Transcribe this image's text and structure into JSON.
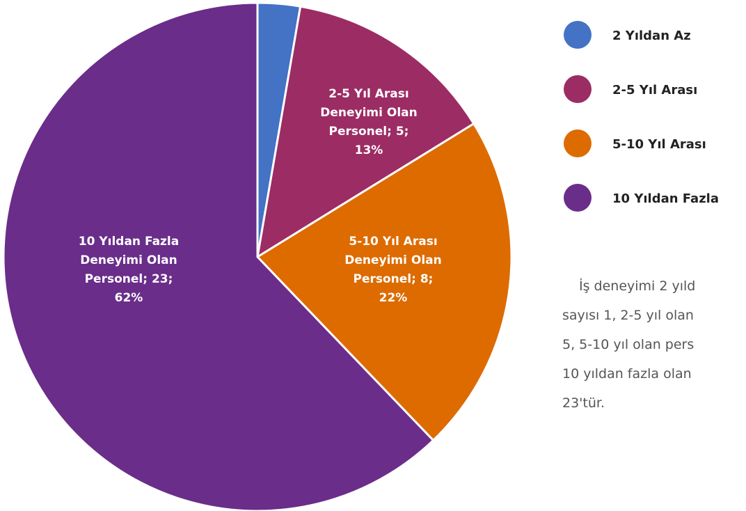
{
  "chart_data": {
    "type": "pie",
    "categories": [
      "2 Yıldan Az",
      "2-5 Yıl Arası",
      "5-10 Yıl Arası",
      "10 Yıldan Fazla"
    ],
    "values": [
      1,
      5,
      8,
      23
    ],
    "value_labels": [
      null,
      [
        "2-5 Yıl Arası",
        "Deneyimi Olan",
        "Personel; 5;",
        "13%"
      ],
      [
        "5-10 Yıl Arası",
        "Deneyimi Olan",
        "Personel; 8;",
        "22%"
      ],
      [
        "10 Yıldan Fazla",
        "Deneyimi Olan",
        "Personel; 23;",
        "62%"
      ]
    ],
    "colors": [
      "#4472c4",
      "#9c2c64",
      "#dd6b00",
      "#6a2d8a"
    ],
    "legend": "right"
  },
  "paragraph": [
    "İş deneyimi 2 yıld",
    "sayısı 1, 2-5 yıl olan",
    "5, 5-10 yıl olan pers",
    "10 yıldan fazla olan",
    "23'tür."
  ]
}
